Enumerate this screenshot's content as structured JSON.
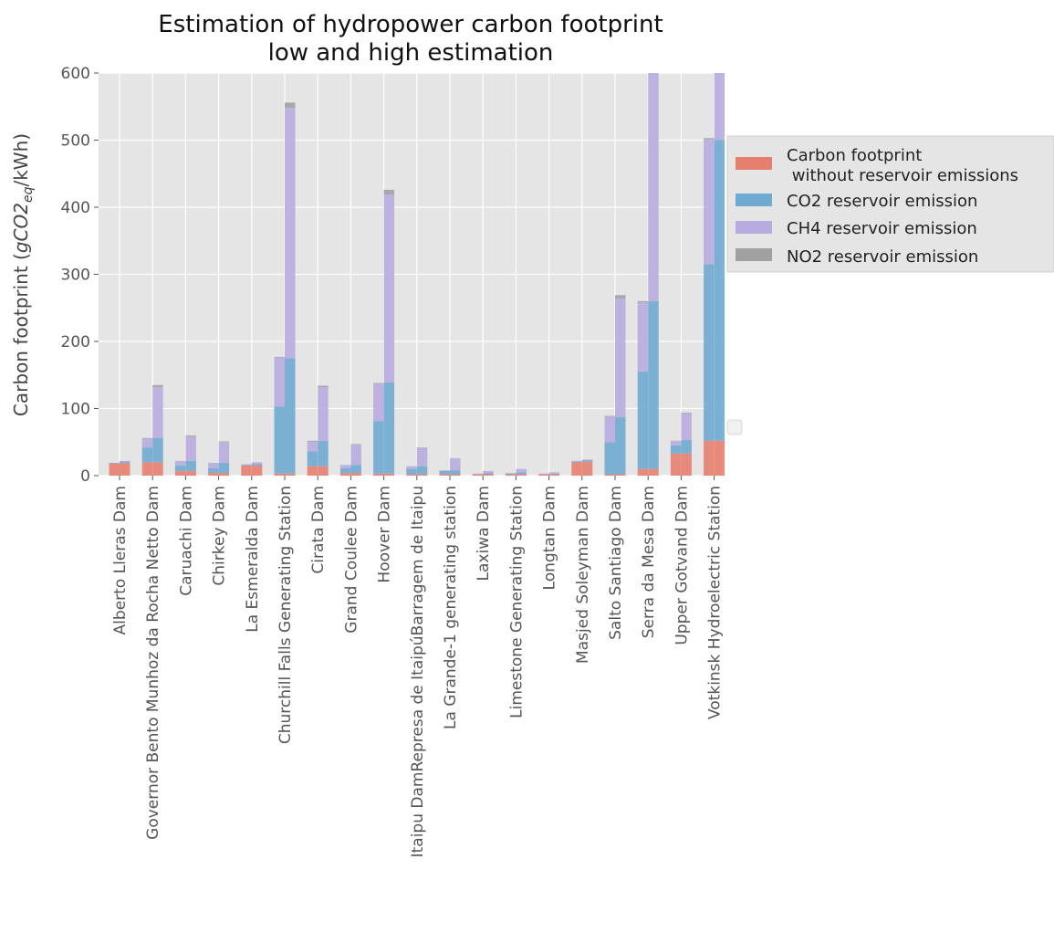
{
  "chart_data": {
    "type": "bar",
    "stacked": true,
    "title": "Estimation of hydropower carbon footprint",
    "subtitle": "low and high estimation",
    "ylabel": "Carbon footprint (gCO2eq/kWh)",
    "ylabel_parts": {
      "prefix": "Carbon footprint (",
      "italic_base": "gCO2",
      "italic_sub": "eq",
      "suffix": "/kWh)"
    },
    "ylim": [
      0,
      600
    ],
    "yticks": [
      0,
      100,
      200,
      300,
      400,
      500,
      600
    ],
    "grid": true,
    "legend_placement": "right, outside plot (upper)",
    "categories": [
      "Alberto Lleras Dam",
      "Governor Bento Munhoz da Rocha Netto Dam",
      "Caruachi Dam",
      "Chirkey Dam",
      "La Esmeralda Dam",
      "Churchill Falls Generating Station",
      "Cirata Dam",
      "Grand Coulee Dam",
      "Hoover Dam",
      "Itaipu DamRepresa de ItaipúBarragem de Itaipu",
      "La Grande-1 generating station",
      "Laxiwa Dam",
      "Limestone Generating Station",
      "Longtan Dam",
      "Masjed Soleyman Dam",
      "Salto Santiago Dam",
      "Serra da Mesa Dam",
      "Upper Gotvand Dam",
      "Votkinsk Hydroelectric Station"
    ],
    "estimations": [
      {
        "name": "low",
        "series": [
          {
            "name": "Carbon footprint\n without reservoir emissions",
            "values": [
              18,
              20,
              7,
              4,
              15,
              3,
              14,
              4,
              3,
              2,
              2,
              2,
              2,
              2,
              20,
              2,
              10,
              33,
              52
            ]
          },
          {
            "name": "CO2 reservoir emission",
            "values": [
              1,
              22,
              8,
              7,
              1,
              100,
              22,
              7,
              78,
              8,
              5,
              0,
              1,
              0,
              1,
              48,
              145,
              12,
              263
            ]
          },
          {
            "name": "CH4 reservoir emission",
            "values": [
              0,
              13,
              7,
              8,
              1,
              73,
              15,
              5,
              56,
              4,
              1,
              1,
              1,
              1,
              1,
              38,
              103,
              7,
              186
            ]
          },
          {
            "name": "NO2 reservoir emission",
            "values": [
              0,
              1,
              0,
              0,
              0,
              1,
              1,
              0,
              1,
              0,
              0,
              0,
              0,
              0,
              0,
              1,
              2,
              0,
              2
            ]
          }
        ]
      },
      {
        "name": "high",
        "series": [
          {
            "name": "Carbon footprint\n without reservoir emissions",
            "values": [
              19,
              20,
              7,
              4,
              15,
              3,
              14,
              4,
              3,
              2,
              2,
              2,
              2,
              2,
              21,
              2,
              10,
              33,
              52
            ]
          },
          {
            "name": "CO2 reservoir emission",
            "values": [
              2,
              36,
              15,
              15,
              2,
              172,
              38,
              12,
              136,
              12,
              6,
              2,
              3,
              1,
              2,
              85,
              250,
              20,
              448
            ]
          },
          {
            "name": "CH4 reservoir emission",
            "values": [
              1,
              76,
              37,
              31,
              3,
              373,
              80,
              30,
              280,
              27,
              18,
              3,
              5,
              2,
              1,
              177,
              380,
              40,
              285
            ]
          },
          {
            "name": "NO2 reservoir emission",
            "values": [
              0,
              3,
              1,
              1,
              0,
              8,
              2,
              1,
              7,
              1,
              0,
              0,
              0,
              0,
              0,
              5,
              10,
              1,
              10
            ]
          }
        ]
      }
    ],
    "colors": {
      "carbon": "#E5806F",
      "co2": "#6FAAD0",
      "ch4": "#B8ABDF",
      "no2": "#A1A1A1",
      "plot_bg": "#E5E5E5",
      "grid": "#FFFFFF",
      "tick_text": "#555555",
      "text": "#222222"
    }
  },
  "legend": {
    "items": [
      {
        "key": "carbon",
        "label_line1": "Carbon footprint",
        "label_line2": " without reservoir emissions"
      },
      {
        "key": "co2",
        "label_line1": "CO2 reservoir emission"
      },
      {
        "key": "ch4",
        "label_line1": "CH4 reservoir emission"
      },
      {
        "key": "no2",
        "label_line1": "NO2 reservoir emission"
      }
    ]
  }
}
